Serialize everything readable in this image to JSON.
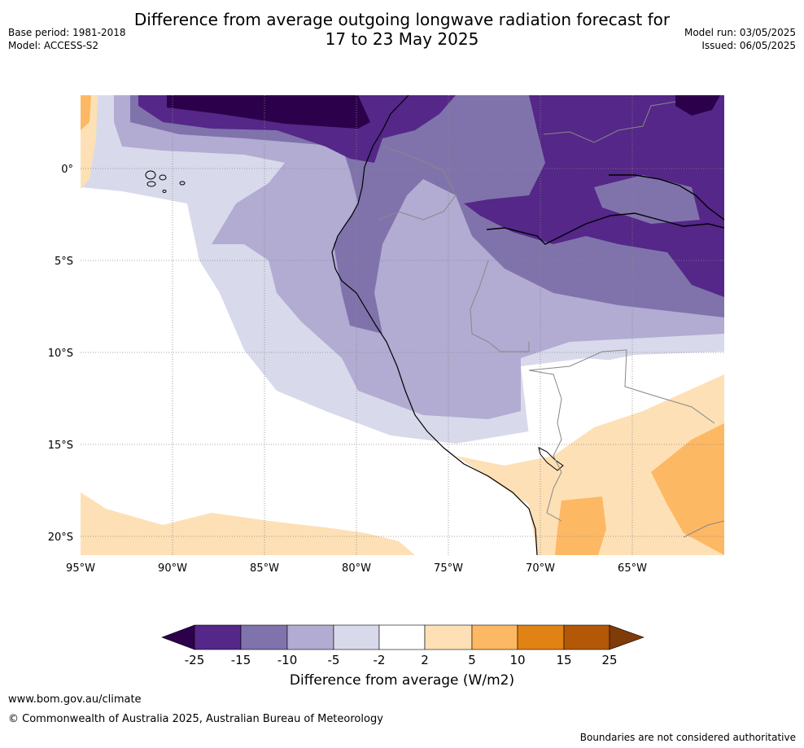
{
  "title_line1": "Difference from average outgoing longwave radiation forecast for",
  "title_line2": "17 to 23 May 2025",
  "base_period": "Base period: 1981-2018",
  "model": "Model: ACCESS-S2",
  "model_run": "Model run: 03/05/2025",
  "issued": "Issued: 06/05/2025",
  "map": {
    "lat_labels": [
      "0°",
      "5°S",
      "10°S",
      "15°S",
      "20°S"
    ],
    "lon_labels": [
      "95°W",
      "90°W",
      "85°W",
      "80°W",
      "75°W",
      "70°W",
      "65°W"
    ]
  },
  "colorbar": {
    "title": "Difference from average (W/m2)",
    "ticks": [
      "-25",
      "-15",
      "-10",
      "-5",
      "-2",
      "2",
      "5",
      "10",
      "15",
      "25"
    ],
    "colors": [
      "#2d004b",
      "#542788",
      "#8073ac",
      "#b2abd2",
      "#d8daeb",
      "#ffffff",
      "#fee0b6",
      "#fdb863",
      "#e08214",
      "#b35806",
      "#7f3b08"
    ]
  },
  "footer": {
    "url": "www.bom.gov.au/climate",
    "copyright": "© Commonwealth of Australia 2025, Australian Bureau of Meteorology",
    "note": "Boundaries are not considered authoritative"
  }
}
